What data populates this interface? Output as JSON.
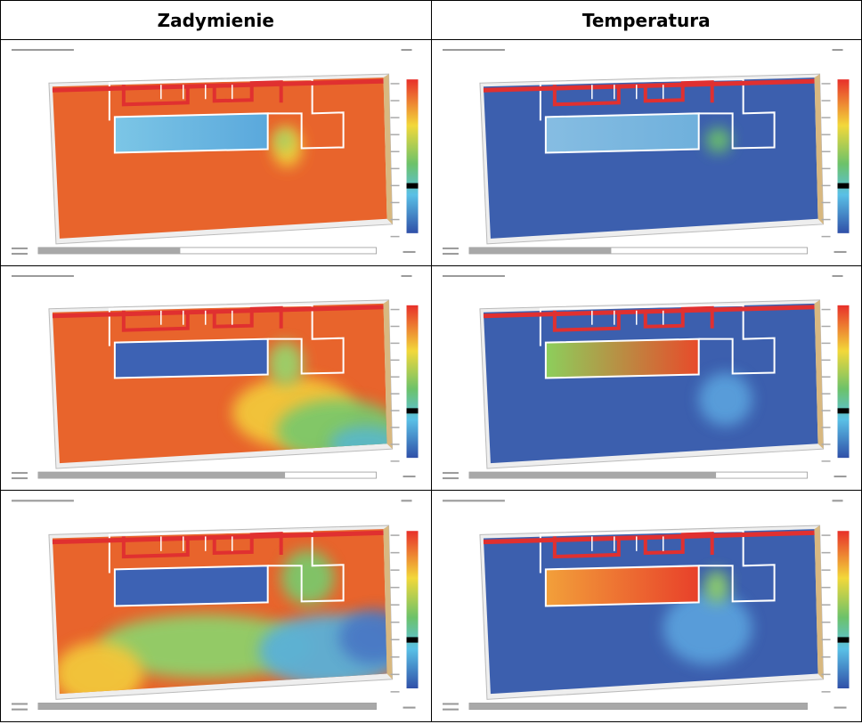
{
  "table": {
    "headers": [
      "Zadymienie",
      "Temperatura"
    ]
  }
}
